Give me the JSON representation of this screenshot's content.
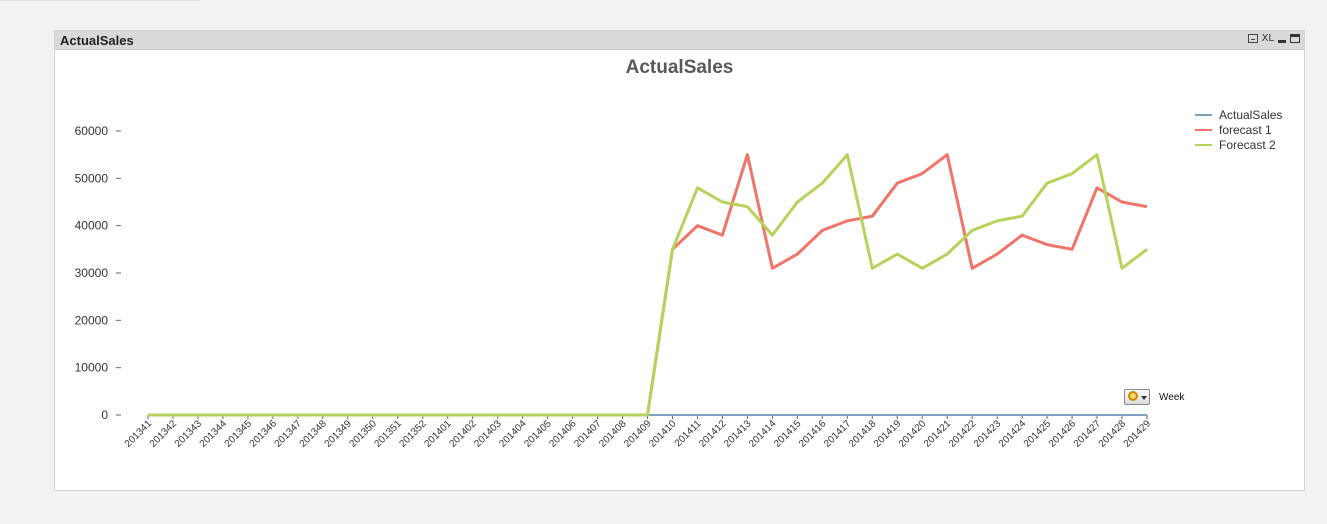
{
  "window": {
    "caption": "ActualSales",
    "icons": [
      "print-icon",
      "xl-icon",
      "minimize-icon",
      "maximize-icon"
    ],
    "xl_label": "XL"
  },
  "dimension": {
    "label": "Week",
    "icon": "cycle-group-icon"
  },
  "chart_data": {
    "type": "line",
    "title": "ActualSales",
    "xlabel": "",
    "ylabel": "",
    "ylim": [
      0,
      60000
    ],
    "yticks": [
      0,
      10000,
      20000,
      30000,
      40000,
      50000,
      60000
    ],
    "grid": false,
    "legend_position": "right",
    "categories": [
      "201341",
      "201342",
      "201343",
      "201344",
      "201345",
      "201346",
      "201347",
      "201348",
      "201349",
      "201350",
      "201351",
      "201352",
      "201401",
      "201402",
      "201403",
      "201404",
      "201405",
      "201406",
      "201407",
      "201408",
      "201409",
      "201410",
      "201411",
      "201412",
      "201413",
      "201414",
      "201415",
      "201416",
      "201417",
      "201418",
      "201419",
      "201420",
      "201421",
      "201422",
      "201423",
      "201424",
      "201425",
      "201426",
      "201427",
      "201428",
      "201429"
    ],
    "series": [
      {
        "name": "ActualSales",
        "color": "#7f9fbf",
        "values": [
          0,
          0,
          0,
          0,
          0,
          0,
          0,
          0,
          0,
          0,
          0,
          0,
          0,
          0,
          0,
          0,
          0,
          0,
          0,
          0,
          0,
          0,
          0,
          0,
          0,
          0,
          0,
          0,
          0,
          0,
          0,
          0,
          0,
          0,
          0,
          0,
          0,
          0,
          0,
          0,
          0
        ]
      },
      {
        "name": "forecast 1",
        "color": "#f07468",
        "values": [
          0,
          0,
          0,
          0,
          0,
          0,
          0,
          0,
          0,
          0,
          0,
          0,
          0,
          0,
          0,
          0,
          0,
          0,
          0,
          0,
          0,
          35000,
          40000,
          38000,
          55000,
          31000,
          34000,
          39000,
          41000,
          42000,
          49000,
          51000,
          55000,
          31000,
          34000,
          38000,
          36000,
          35000,
          48000,
          45000,
          44000
        ]
      },
      {
        "name": "Forecast 2",
        "color": "#b5d35a",
        "values": [
          0,
          0,
          0,
          0,
          0,
          0,
          0,
          0,
          0,
          0,
          0,
          0,
          0,
          0,
          0,
          0,
          0,
          0,
          0,
          0,
          0,
          35000,
          48000,
          45000,
          44000,
          38000,
          45000,
          49000,
          55000,
          31000,
          34000,
          31000,
          34000,
          39000,
          41000,
          42000,
          49000,
          51000,
          55000,
          31000,
          35000
        ]
      }
    ]
  }
}
